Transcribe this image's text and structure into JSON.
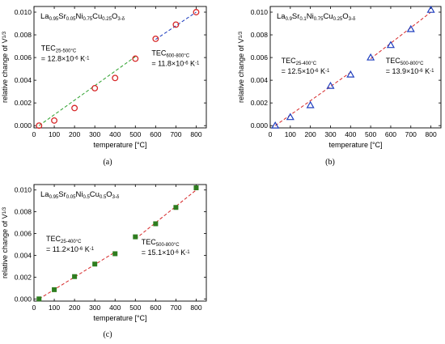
{
  "chart_data": [
    {
      "type": "scatter",
      "caption": "(a)",
      "xlabel": "temperature [°C]",
      "ylabel": "relative change of V",
      "ylabel_sup": "1/3",
      "xlim": [
        0,
        850
      ],
      "ylim": [
        -0.0002,
        0.0105
      ],
      "xticks": [
        0,
        100,
        200,
        300,
        400,
        500,
        600,
        700,
        800
      ],
      "yticks": [
        "0.000",
        "0.002",
        "0.004",
        "0.006",
        "0.008",
        "0.010"
      ],
      "title": {
        "parts": [
          [
            "La",
            ""
          ],
          [
            "0.95",
            "sub"
          ],
          [
            "Sr",
            ""
          ],
          [
            "0.05",
            "sub"
          ],
          [
            "Ni",
            ""
          ],
          [
            "0.75",
            "sub"
          ],
          [
            "Cu",
            ""
          ],
          [
            "0.25",
            "sub"
          ],
          [
            "O",
            ""
          ],
          [
            "3-δ",
            "sub"
          ]
        ]
      },
      "marker": "circle-open",
      "marker_color": "#d62728",
      "series": [
        {
          "x": [
            25,
            100,
            200,
            300,
            400,
            500,
            600,
            700,
            800
          ],
          "y": [
            0.0,
            0.00045,
            0.00155,
            0.0033,
            0.0042,
            0.0059,
            0.00765,
            0.0089,
            0.01
          ]
        }
      ],
      "fits": [
        {
          "x": [
            25,
            500
          ],
          "y": [
            0.0,
            0.00608
          ],
          "color": "#2ca02c"
        },
        {
          "x": [
            600,
            800
          ],
          "y": [
            0.0076,
            0.01
          ],
          "color": "#1f3fbf"
        }
      ],
      "annotations": [
        {
          "lines": [
            {
              "parts": [
                [
                  "TEC",
                  ""
                ],
                [
                  "25-500°C",
                  "sub"
                ]
              ]
            },
            {
              "parts": [
                [
                  "= 12.8×10",
                  ""
                ],
                [
                  "-6",
                  "sup"
                ],
                [
                  " K",
                  ""
                ],
                [
                  "-1",
                  "sup"
                ]
              ]
            }
          ],
          "anchor": [
            35,
            0.0066
          ]
        },
        {
          "lines": [
            {
              "parts": [
                [
                  "TEC",
                  ""
                ],
                [
                  "600-800°C",
                  "sub"
                ]
              ]
            },
            {
              "parts": [
                [
                  "= 11.8×10",
                  ""
                ],
                [
                  "-6",
                  "sup"
                ],
                [
                  " K",
                  ""
                ],
                [
                  "-1",
                  "sup"
                ]
              ]
            }
          ],
          "anchor": [
            580,
            0.0062
          ]
        }
      ]
    },
    {
      "type": "scatter",
      "caption": "(b)",
      "xlabel": "temperature [°C]",
      "ylabel": "relative change of V",
      "ylabel_sup": "1/3",
      "xlim": [
        0,
        850
      ],
      "ylim": [
        -0.0002,
        0.0105
      ],
      "xticks": [
        0,
        100,
        200,
        300,
        400,
        500,
        600,
        700,
        800
      ],
      "yticks": [
        "0.000",
        "0.002",
        "0.004",
        "0.006",
        "0.008",
        "0.010"
      ],
      "title": {
        "parts": [
          [
            "La",
            ""
          ],
          [
            "0.9",
            "sub"
          ],
          [
            "Sr",
            ""
          ],
          [
            "0.1",
            "sub"
          ],
          [
            "Ni",
            ""
          ],
          [
            "0.75",
            "sub"
          ],
          [
            "Cu",
            ""
          ],
          [
            "0.25",
            "sub"
          ],
          [
            "O",
            ""
          ],
          [
            "3-δ",
            "sub"
          ]
        ]
      },
      "marker": "triangle-open",
      "marker_color": "#1f3fbf",
      "series": [
        {
          "x": [
            25,
            100,
            200,
            300,
            400,
            500,
            600,
            700,
            800
          ],
          "y": [
            0.0,
            0.00075,
            0.0018,
            0.0035,
            0.0045,
            0.006,
            0.0071,
            0.0085,
            0.0102
          ]
        }
      ],
      "fits": [
        {
          "x": [
            25,
            400
          ],
          "y": [
            0.0,
            0.0047
          ],
          "color": "#d62728"
        },
        {
          "x": [
            500,
            800
          ],
          "y": [
            0.0059,
            0.01
          ],
          "color": "#d62728"
        }
      ],
      "annotations": [
        {
          "lines": [
            {
              "parts": [
                [
                  "TEC",
                  ""
                ],
                [
                  "25-400°C",
                  "sub"
                ]
              ]
            },
            {
              "parts": [
                [
                  "= 12.5×10",
                  ""
                ],
                [
                  "-6",
                  "sup"
                ],
                [
                  " K",
                  ""
                ],
                [
                  "-1",
                  "sup"
                ]
              ]
            }
          ],
          "anchor": [
            55,
            0.0055
          ]
        },
        {
          "lines": [
            {
              "parts": [
                [
                  "TEC",
                  ""
                ],
                [
                  "500-800°C",
                  "sub"
                ]
              ]
            },
            {
              "parts": [
                [
                  "= 13.9×10",
                  ""
                ],
                [
                  "-6",
                  "sup"
                ],
                [
                  " K",
                  ""
                ],
                [
                  "-1",
                  "sup"
                ]
              ]
            }
          ],
          "anchor": [
            575,
            0.0055
          ]
        }
      ]
    },
    {
      "type": "scatter",
      "caption": "(c)",
      "xlabel": "temperature [°C]",
      "ylabel": "relative change of V",
      "ylabel_sup": "1/3",
      "xlim": [
        0,
        850
      ],
      "ylim": [
        -0.0002,
        0.0105
      ],
      "xticks": [
        0,
        100,
        200,
        300,
        400,
        500,
        600,
        700,
        800
      ],
      "yticks": [
        "0.000",
        "0.002",
        "0.004",
        "0.006",
        "0.008",
        "0.010"
      ],
      "title": {
        "parts": [
          [
            "La",
            ""
          ],
          [
            "0.95",
            "sub"
          ],
          [
            "Sr",
            ""
          ],
          [
            "0.05",
            "sub"
          ],
          [
            "Ni",
            ""
          ],
          [
            "0.5",
            "sub"
          ],
          [
            "Cu",
            ""
          ],
          [
            "0.5",
            "sub"
          ],
          [
            "O",
            ""
          ],
          [
            "3-δ",
            "sub"
          ]
        ]
      },
      "marker": "square-filled",
      "marker_color": "#2e7d1f",
      "series": [
        {
          "x": [
            25,
            100,
            200,
            300,
            400,
            500,
            600,
            700,
            800
          ],
          "y": [
            0.0,
            0.00085,
            0.00205,
            0.0032,
            0.00415,
            0.0057,
            0.0069,
            0.0084,
            0.0102
          ]
        }
      ],
      "fits": [
        {
          "x": [
            25,
            400
          ],
          "y": [
            0.0,
            0.0043
          ],
          "color": "#d62728"
        },
        {
          "x": [
            500,
            800
          ],
          "y": [
            0.0055,
            0.01
          ],
          "color": "#d62728"
        }
      ],
      "annotations": [
        {
          "lines": [
            {
              "parts": [
                [
                  "TEC",
                  ""
                ],
                [
                  "25-400°C",
                  "sub"
                ]
              ]
            },
            {
              "parts": [
                [
                  "= 11.2×10",
                  ""
                ],
                [
                  "-6",
                  "sup"
                ],
                [
                  " K",
                  ""
                ],
                [
                  "-1",
                  "sup"
                ]
              ]
            }
          ],
          "anchor": [
            60,
            0.0053
          ]
        },
        {
          "lines": [
            {
              "parts": [
                [
                  "TEC",
                  ""
                ],
                [
                  "500-800°C",
                  "sub"
                ]
              ]
            },
            {
              "parts": [
                [
                  "= 15.1×10",
                  ""
                ],
                [
                  "-6",
                  "sup"
                ],
                [
                  " K",
                  ""
                ],
                [
                  "-1",
                  "sup"
                ]
              ]
            }
          ],
          "anchor": [
            530,
            0.005
          ]
        }
      ]
    }
  ]
}
